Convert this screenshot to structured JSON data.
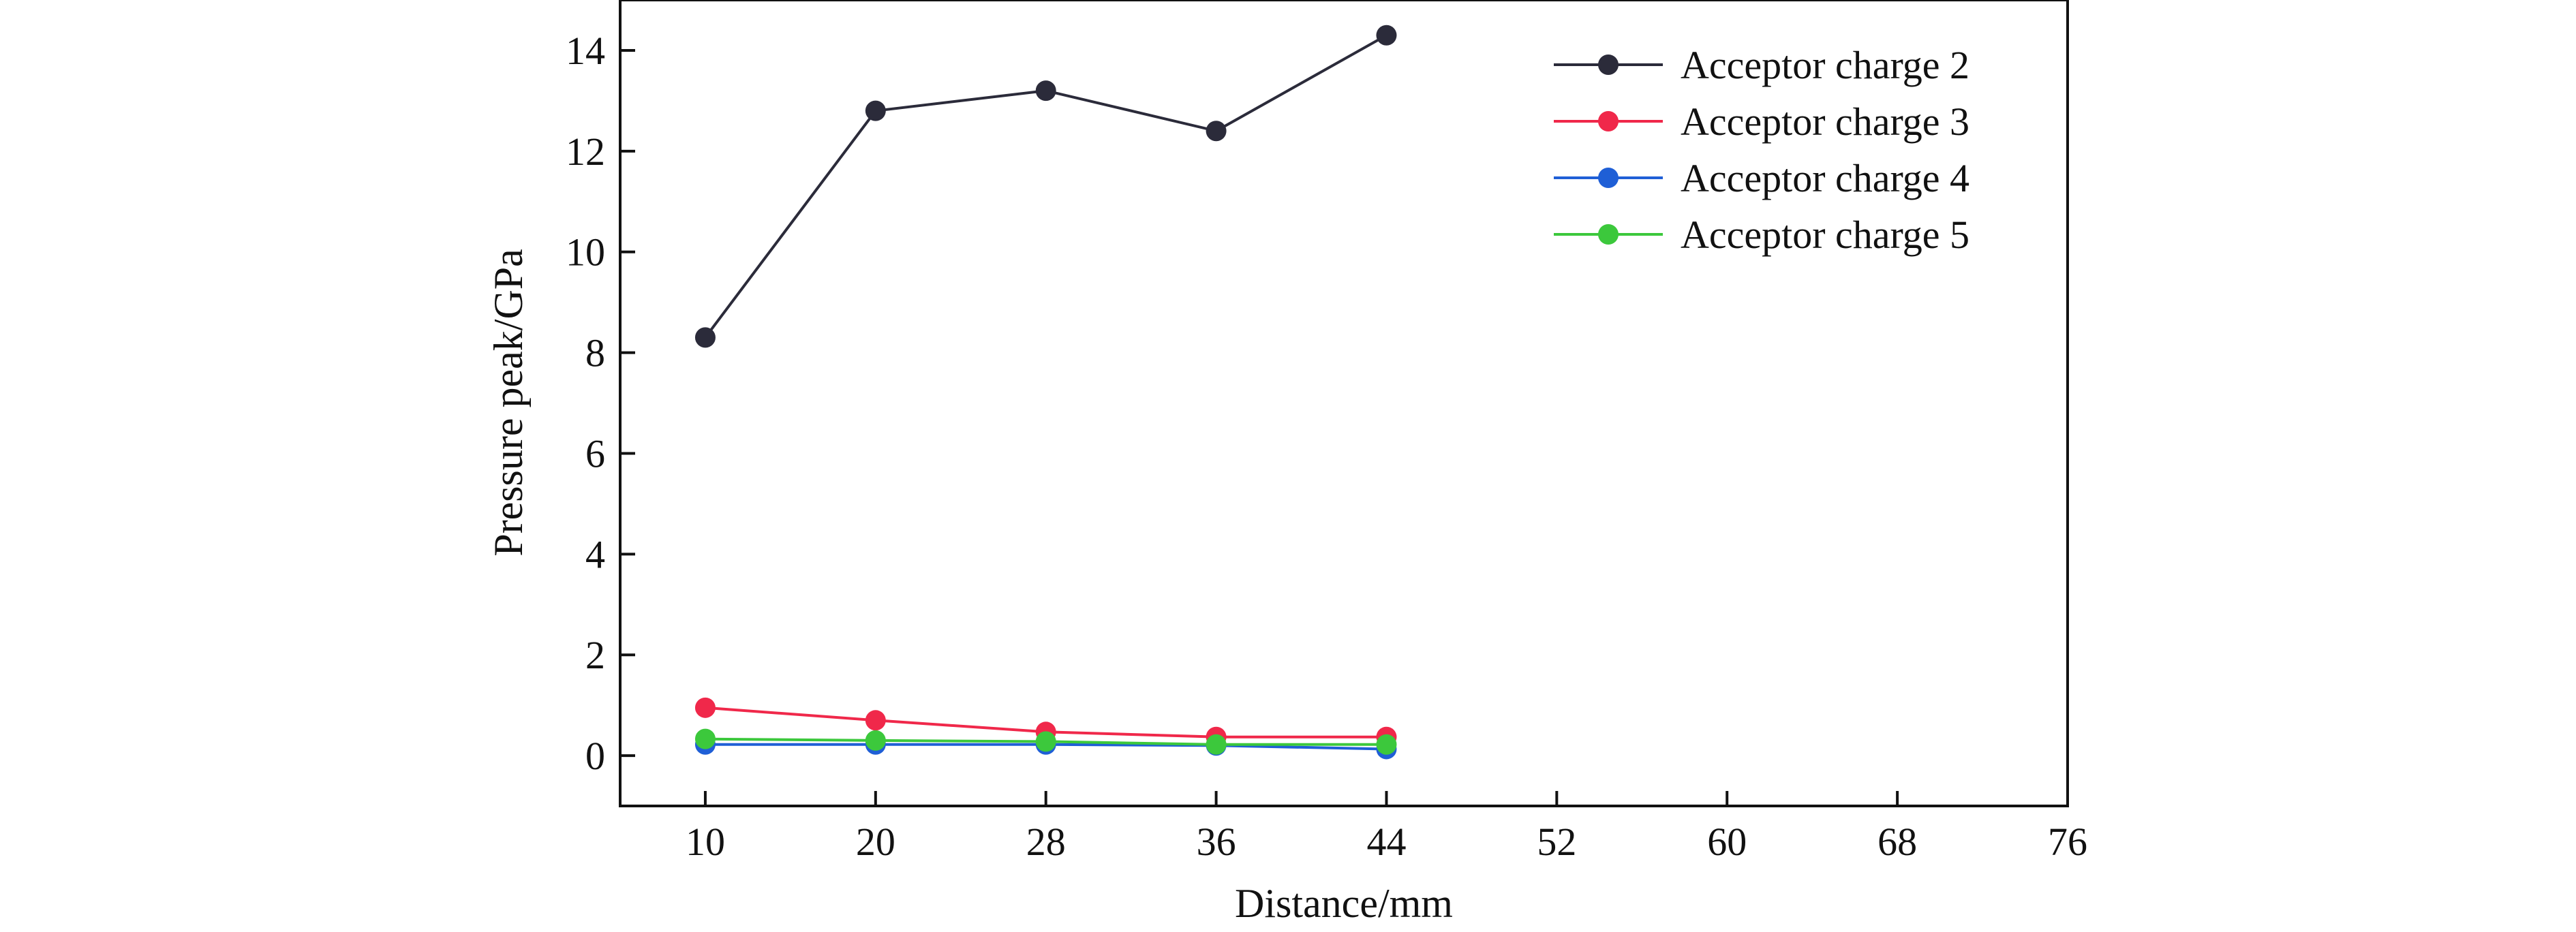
{
  "chart_data": {
    "type": "line",
    "title": "",
    "xlabel": "Distance/mm",
    "ylabel": "Pressure peak/GPa",
    "xlim": [
      5,
      76
    ],
    "ylim": [
      -1,
      15
    ],
    "x_ticks": [
      10,
      20,
      28,
      36,
      44,
      52,
      60,
      68,
      76
    ],
    "y_ticks": [
      0,
      2,
      4,
      6,
      8,
      10,
      12,
      14
    ],
    "x_tick_positions": [
      10,
      20,
      30,
      40,
      50,
      60,
      70,
      80,
      90
    ],
    "grid": false,
    "legend_position": "top-right",
    "x": [
      10,
      20,
      28,
      36,
      44
    ],
    "series": [
      {
        "name": "Acceptor charge 2",
        "color": "#2b2b3a",
        "values": [
          8.3,
          12.8,
          13.2,
          12.4,
          14.3
        ]
      },
      {
        "name": "Acceptor charge 3",
        "color": "#f0284a",
        "values": [
          0.95,
          0.7,
          0.47,
          0.37,
          0.37
        ]
      },
      {
        "name": "Acceptor charge 4",
        "color": "#1f5fd6",
        "values": [
          0.22,
          0.22,
          0.22,
          0.2,
          0.13
        ]
      },
      {
        "name": "Acceptor charge 5",
        "color": "#3cc83c",
        "values": [
          0.33,
          0.3,
          0.28,
          0.22,
          0.22
        ]
      }
    ]
  }
}
